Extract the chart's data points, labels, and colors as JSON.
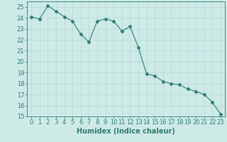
{
  "x": [
    0,
    1,
    2,
    3,
    4,
    5,
    6,
    7,
    8,
    9,
    10,
    11,
    12,
    13,
    14,
    15,
    16,
    17,
    18,
    19,
    20,
    21,
    22,
    23
  ],
  "y": [
    24.1,
    23.9,
    25.1,
    24.6,
    24.1,
    23.7,
    22.5,
    21.8,
    23.7,
    23.9,
    23.7,
    22.8,
    23.2,
    21.3,
    18.9,
    18.7,
    18.2,
    18.0,
    17.9,
    17.5,
    17.3,
    17.0,
    16.3,
    15.2
  ],
  "xlabel": "Humidex (Indice chaleur)",
  "xlim": [
    -0.5,
    23.5
  ],
  "ylim": [
    15,
    25.5
  ],
  "yticks": [
    15,
    16,
    17,
    18,
    19,
    20,
    21,
    22,
    23,
    24,
    25
  ],
  "xticks": [
    0,
    1,
    2,
    3,
    4,
    5,
    6,
    7,
    8,
    9,
    10,
    11,
    12,
    13,
    14,
    15,
    16,
    17,
    18,
    19,
    20,
    21,
    22,
    23
  ],
  "line_color": "#2e7d6e",
  "marker": "D",
  "marker_size": 2.5,
  "bg_color": "#cdeae7",
  "grid_color_major": "#b8d8d4",
  "grid_color_minor": "#d0e8e4",
  "axis_fontsize": 7,
  "tick_fontsize": 6
}
